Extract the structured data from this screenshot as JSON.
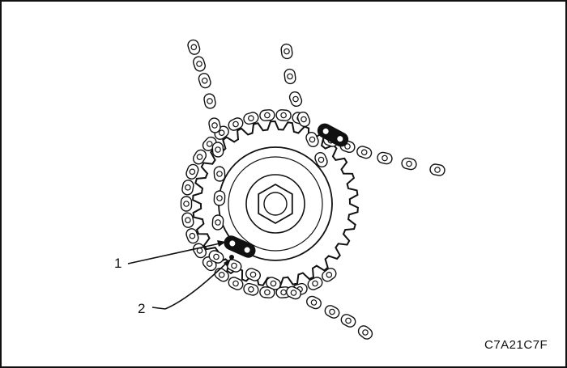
{
  "diagram": {
    "callouts": [
      {
        "label": "1"
      },
      {
        "label": "2"
      }
    ],
    "figure_code": "C7A21C7F",
    "colors": {
      "line": "#111111",
      "background": "#ffffff"
    }
  }
}
